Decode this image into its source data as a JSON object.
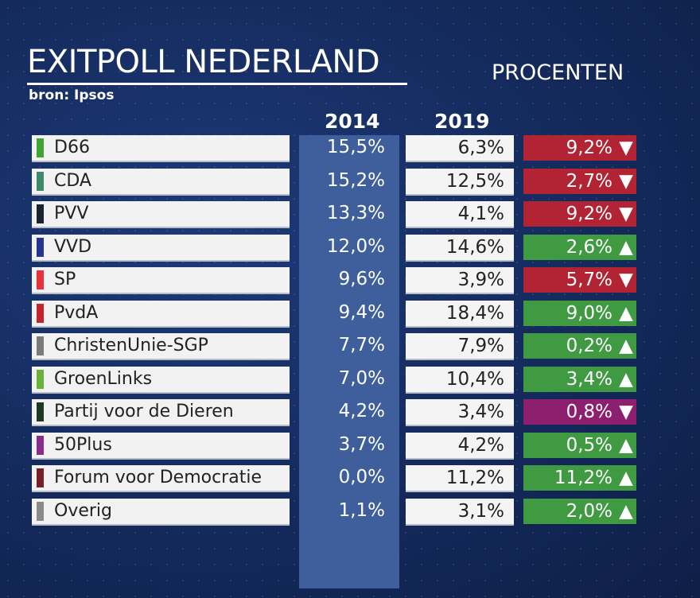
{
  "header": {
    "title": "EXITPOLL NEDERLAND",
    "source": "bron: Ipsos",
    "unit": "PROCENTEN",
    "col_2014": "2014",
    "col_2019": "2019"
  },
  "colors": {
    "down": "#b22433",
    "up": "#3f9a42",
    "fifty_plus_down": "#8c1f6e"
  },
  "rows": [
    {
      "party": "D66",
      "v2014": "15,5%",
      "v2019": "6,3%",
      "change": "9,2%",
      "dir": "down",
      "swatch": "#3fa535"
    },
    {
      "party": "CDA",
      "v2014": "15,2%",
      "v2019": "12,5%",
      "change": "2,7%",
      "dir": "down",
      "swatch": "#3f8a6a"
    },
    {
      "party": "PVV",
      "v2014": "13,3%",
      "v2019": "4,1%",
      "change": "9,2%",
      "dir": "down",
      "swatch": "#1b2530"
    },
    {
      "party": "VVD",
      "v2014": "12,0%",
      "v2019": "14,6%",
      "change": "2,6%",
      "dir": "up",
      "swatch": "#26358f"
    },
    {
      "party": "SP",
      "v2014": "9,6%",
      "v2019": "3,9%",
      "change": "5,7%",
      "dir": "down",
      "swatch": "#e8323a"
    },
    {
      "party": "PvdA",
      "v2014": "9,4%",
      "v2019": "18,4%",
      "change": "9,0%",
      "dir": "up",
      "swatch": "#c42430"
    },
    {
      "party": "ChristenUnie-SGP",
      "v2014": "7,7%",
      "v2019": "7,9%",
      "change": "0,2%",
      "dir": "up",
      "swatch": "#7a7a7a"
    },
    {
      "party": "GroenLinks",
      "v2014": "7,0%",
      "v2019": "10,4%",
      "change": "3,4%",
      "dir": "up",
      "swatch": "#68b23a"
    },
    {
      "party": "Partij voor de Dieren",
      "v2014": "4,2%",
      "v2019": "3,4%",
      "change": "0,8%",
      "dir": "down",
      "swatch": "#1c3a22"
    },
    {
      "party": "50Plus",
      "v2014": "3,7%",
      "v2019": "4,2%",
      "change": "0,5%",
      "dir": "up",
      "swatch": "#8a2a8a"
    },
    {
      "party": "Forum voor Democratie",
      "v2014": "0,0%",
      "v2019": "11,2%",
      "change": "11,2%",
      "dir": "up",
      "swatch": "#7a1e28"
    },
    {
      "party": "Overig",
      "v2014": "1,1%",
      "v2019": "3,1%",
      "change": "2,0%",
      "dir": "up",
      "swatch": "#8a8a8a"
    }
  ]
}
